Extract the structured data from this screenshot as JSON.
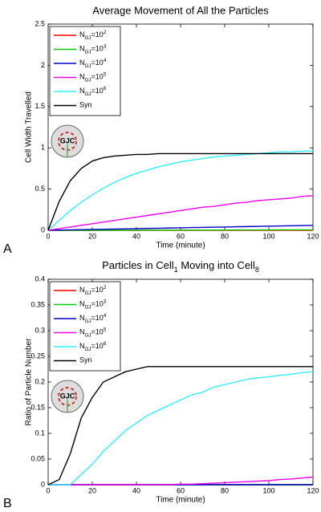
{
  "chart_data": [
    {
      "type": "line",
      "panel": "A",
      "title": "Average Movement of All the Particles",
      "xlabel": "Time (minute)",
      "ylabel": "Cell Width Travelled",
      "icon_label": "GJC",
      "x": [
        0,
        5,
        10,
        15,
        20,
        25,
        30,
        35,
        40,
        45,
        50,
        55,
        60,
        65,
        70,
        75,
        80,
        85,
        90,
        95,
        100,
        105,
        110,
        115,
        120
      ],
      "xlim": [
        0,
        120
      ],
      "xticks": [
        0,
        20,
        40,
        60,
        80,
        100,
        120
      ],
      "ylim": [
        0,
        2.5
      ],
      "yticks": [
        0,
        0.5,
        1,
        1.5,
        2,
        2.5
      ],
      "series": [
        {
          "name": [
            "N",
            "GJ",
            "=10",
            "2"
          ],
          "color": "#ff0000",
          "values": [
            0,
            0,
            0,
            0,
            0,
            0,
            0,
            0,
            0,
            0,
            0,
            0,
            0,
            0,
            0,
            0,
            0,
            0,
            0,
            0,
            0,
            0,
            0,
            0,
            0
          ]
        },
        {
          "name": [
            "N",
            "GJ",
            "=10",
            "3"
          ],
          "color": "#00cc00",
          "values": [
            0,
            0,
            0,
            0,
            0,
            0.001,
            0.001,
            0.001,
            0.001,
            0.002,
            0.002,
            0.002,
            0.002,
            0.003,
            0.003,
            0.003,
            0.003,
            0.004,
            0.004,
            0.004,
            0.004,
            0.005,
            0.005,
            0.005,
            0.005
          ]
        },
        {
          "name": [
            "N",
            "GJ",
            "=10",
            "4"
          ],
          "color": "#0000cc",
          "values": [
            0,
            0.003,
            0.005,
            0.008,
            0.01,
            0.013,
            0.015,
            0.018,
            0.02,
            0.023,
            0.025,
            0.028,
            0.03,
            0.033,
            0.035,
            0.038,
            0.04,
            0.043,
            0.045,
            0.048,
            0.05,
            0.053,
            0.055,
            0.058,
            0.06
          ]
        },
        {
          "name": [
            "N",
            "GJ",
            "=10",
            "5"
          ],
          "color": "#ee00ee",
          "values": [
            0,
            0.02,
            0.04,
            0.06,
            0.08,
            0.1,
            0.12,
            0.14,
            0.16,
            0.18,
            0.2,
            0.22,
            0.24,
            0.26,
            0.28,
            0.29,
            0.31,
            0.33,
            0.34,
            0.36,
            0.37,
            0.38,
            0.39,
            0.41,
            0.42
          ]
        },
        {
          "name": [
            "N",
            "GJ",
            "=10",
            "6"
          ],
          "color": "#33eeff",
          "values": [
            0,
            0.12,
            0.24,
            0.34,
            0.43,
            0.51,
            0.58,
            0.64,
            0.69,
            0.73,
            0.77,
            0.8,
            0.83,
            0.85,
            0.87,
            0.89,
            0.9,
            0.91,
            0.92,
            0.93,
            0.94,
            0.95,
            0.95,
            0.96,
            0.96
          ]
        },
        {
          "name": [
            "Syn"
          ],
          "color": "#000000",
          "values": [
            0,
            0.35,
            0.6,
            0.75,
            0.84,
            0.88,
            0.9,
            0.91,
            0.92,
            0.92,
            0.93,
            0.93,
            0.93,
            0.93,
            0.93,
            0.93,
            0.93,
            0.93,
            0.93,
            0.93,
            0.93,
            0.93,
            0.93,
            0.93,
            0.93
          ]
        }
      ]
    },
    {
      "type": "line",
      "panel": "B",
      "title": [
        "Particles in Cell",
        "1",
        " Moving into Cell",
        "8"
      ],
      "xlabel": "Time (minute)",
      "ylabel": "Ratio of Particle Number",
      "icon_label": "GJC",
      "x": [
        0,
        5,
        10,
        15,
        20,
        25,
        30,
        35,
        40,
        45,
        50,
        55,
        60,
        65,
        70,
        75,
        80,
        85,
        90,
        95,
        100,
        105,
        110,
        115,
        120
      ],
      "xlim": [
        0,
        120
      ],
      "xticks": [
        0,
        20,
        40,
        60,
        80,
        100,
        120
      ],
      "ylim": [
        0,
        0.4
      ],
      "yticks": [
        0,
        0.05,
        0.1,
        0.15,
        0.2,
        0.25,
        0.3,
        0.35,
        0.4
      ],
      "series": [
        {
          "name": [
            "N",
            "GJ",
            "=10",
            "2"
          ],
          "color": "#ff0000",
          "values": [
            0,
            0,
            0,
            0,
            0,
            0,
            0,
            0,
            0,
            0,
            0,
            0,
            0,
            0,
            0,
            0,
            0,
            0,
            0,
            0,
            0,
            0,
            0,
            0,
            0
          ]
        },
        {
          "name": [
            "N",
            "GJ",
            "=10",
            "3"
          ],
          "color": "#00cc00",
          "values": [
            0,
            0,
            0,
            0,
            0,
            0,
            0,
            0,
            0,
            0,
            0,
            0,
            0,
            0,
            0,
            0,
            0,
            0,
            0,
            0,
            0,
            0,
            0,
            0,
            0
          ]
        },
        {
          "name": [
            "N",
            "GJ",
            "=10",
            "4"
          ],
          "color": "#0000cc",
          "values": [
            0,
            0,
            0,
            0,
            0,
            0,
            0,
            0,
            0,
            0,
            0,
            0,
            0,
            0,
            0,
            0,
            0,
            0,
            0,
            0,
            0,
            0,
            0,
            0,
            0
          ]
        },
        {
          "name": [
            "N",
            "GJ",
            "=10",
            "5"
          ],
          "color": "#ee00ee",
          "values": [
            0,
            0,
            0,
            0,
            0,
            0,
            0,
            0,
            0,
            0,
            0,
            0,
            0.001,
            0.001,
            0.002,
            0.003,
            0.004,
            0.005,
            0.006,
            0.007,
            0.008,
            0.01,
            0.011,
            0.013,
            0.015
          ]
        },
        {
          "name": [
            "N",
            "GJ",
            "=10",
            "6"
          ],
          "color": "#33eeff",
          "values": [
            0,
            0,
            0,
            0.02,
            0.04,
            0.065,
            0.085,
            0.105,
            0.12,
            0.135,
            0.145,
            0.155,
            0.165,
            0.175,
            0.18,
            0.19,
            0.195,
            0.2,
            0.205,
            0.208,
            0.21,
            0.213,
            0.215,
            0.218,
            0.22
          ]
        },
        {
          "name": [
            "Syn"
          ],
          "color": "#000000",
          "values": [
            0,
            0.01,
            0.06,
            0.13,
            0.17,
            0.2,
            0.21,
            0.22,
            0.225,
            0.23,
            0.23,
            0.23,
            0.23,
            0.23,
            0.23,
            0.23,
            0.23,
            0.23,
            0.23,
            0.23,
            0.23,
            0.23,
            0.23,
            0.23,
            0.23
          ]
        }
      ]
    }
  ]
}
